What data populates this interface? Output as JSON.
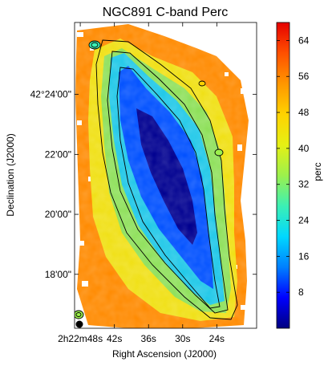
{
  "chart_data": {
    "type": "heatmap",
    "title": "NGC891  C-band  Perc",
    "xlabel": "Right Ascension (J2000)",
    "ylabel": "Declination (J2000)",
    "x_ticks": [
      {
        "label": "2h22m48s",
        "ra_s": 48
      },
      {
        "label": "42s",
        "ra_s": 42
      },
      {
        "label": "36s",
        "ra_s": 36
      },
      {
        "label": "30s",
        "ra_s": 30
      },
      {
        "label": "24s",
        "ra_s": 24
      }
    ],
    "y_ticks": [
      {
        "label": "42°24'00\"",
        "dec_arcmin": 24
      },
      {
        "label": "22'00\"",
        "dec_arcmin": 22
      },
      {
        "label": "20'00\"",
        "dec_arcmin": 20
      },
      {
        "label": "18'00\"",
        "dec_arcmin": 18
      }
    ],
    "x_range_ra_s": [
      49,
      17
    ],
    "y_range_dec_arcmin": [
      16.2,
      26.4
    ],
    "colorbar": {
      "label": "perc",
      "range": [
        0,
        68
      ],
      "ticks": [
        8,
        16,
        24,
        32,
        40,
        48,
        56,
        64
      ],
      "colors": [
        "#000080",
        "#0000ff",
        "#0080ff",
        "#00d8ff",
        "#3cf0b4",
        "#9cf04c",
        "#e6f014",
        "#ffd200",
        "#ff9600",
        "#ff5000",
        "#e60000"
      ]
    },
    "contours": "black",
    "beam": "filled black ellipse, lower-left"
  }
}
